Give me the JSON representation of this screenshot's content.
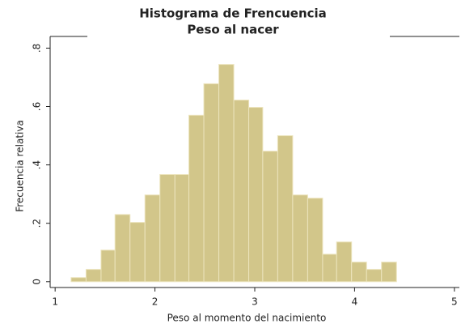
{
  "chart_data": {
    "type": "histogram",
    "title": "Histograma de Frencuencia",
    "subtitle": "Peso al nacer",
    "x_label": "Peso al momento del nacimiento",
    "y_label": "Frecuencia relativa",
    "bins": [
      1.16,
      1.31,
      1.46,
      1.6,
      1.75,
      1.9,
      2.05,
      2.2,
      2.34,
      2.49,
      2.64,
      2.79,
      2.94,
      3.08,
      3.23,
      3.38,
      3.53,
      3.68,
      3.82,
      3.97,
      4.12,
      4.27,
      4.42
    ],
    "values": [
      0.014,
      0.042,
      0.108,
      0.23,
      0.203,
      0.297,
      0.367,
      0.367,
      0.57,
      0.678,
      0.744,
      0.622,
      0.597,
      0.447,
      0.5,
      0.297,
      0.286,
      0.094,
      0.136,
      0.067,
      0.042,
      0.067
    ],
    "color": "#d2c68a",
    "xlim": [
      0.95,
      5.05
    ],
    "xticks": [
      1,
      2,
      3,
      4,
      5
    ],
    "ylim": [
      -0.02,
      0.84
    ],
    "yticks": [
      0,
      {
        "value": 0.2,
        "label": ".2"
      },
      {
        "value": 0.4,
        "label": ".4"
      },
      {
        "value": 0.6,
        "label": ".6"
      },
      {
        "value": 0.8,
        "label": ".8"
      }
    ]
  }
}
